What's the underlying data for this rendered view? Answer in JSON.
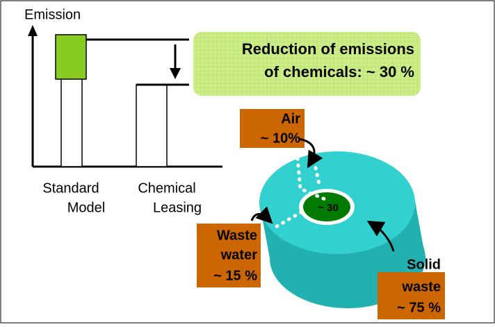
{
  "axis_label": "Emission",
  "bars": [
    {
      "label": [
        "Standard",
        "Model"
      ]
    },
    {
      "label": [
        "Chemical",
        "Leasing"
      ]
    }
  ],
  "reduction": [
    "Reduction of emissions",
    "of chemicals: ~ 30 %"
  ],
  "center": "~ 30",
  "callouts": [
    {
      "lines": [
        "Air",
        "~ 10%"
      ]
    },
    {
      "lines": [
        "Waste",
        "water",
        "~ 15 %"
      ]
    },
    {
      "lines": [
        "Solid",
        "waste",
        "~ 75 %"
      ]
    }
  ]
}
